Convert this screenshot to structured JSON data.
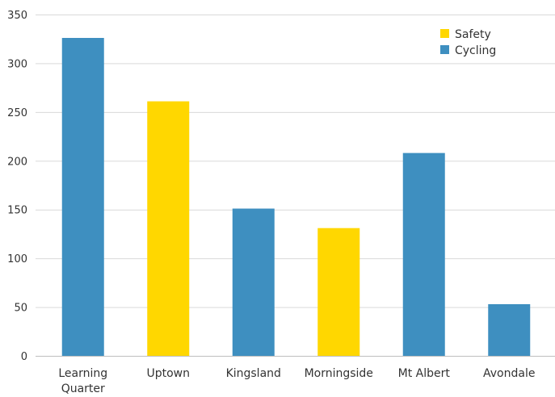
{
  "chart_data": {
    "type": "bar",
    "title": "",
    "xlabel": "",
    "ylabel": "",
    "ylim": [
      0,
      350
    ],
    "yticks": [
      0,
      50,
      100,
      150,
      200,
      250,
      300,
      350
    ],
    "grid": true,
    "legend_position": "top-right",
    "categories": [
      [
        "Learning",
        "Quarter"
      ],
      [
        "Uptown"
      ],
      [
        "Kingsland"
      ],
      [
        "Morningside"
      ],
      [
        "Mt Albert"
      ],
      [
        "Avondale"
      ]
    ],
    "values": [
      326,
      261,
      151,
      131,
      208,
      53
    ],
    "bar_series": [
      "Cycling",
      "Safety",
      "Cycling",
      "Safety",
      "Cycling",
      "Cycling"
    ],
    "series": [
      {
        "name": "Safety",
        "color": "#FFD700"
      },
      {
        "name": "Cycling",
        "color": "#3E8FC0"
      }
    ]
  }
}
